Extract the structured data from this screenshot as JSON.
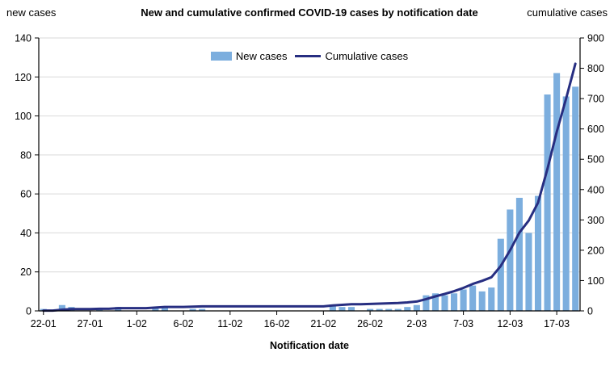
{
  "title": "New and cumulative confirmed COVID-19 cases by notification date",
  "left_axis_label": "new cases",
  "right_axis_label": "cumulative cases",
  "x_axis_title": "Notification date",
  "colors": {
    "bar": "#7CAEDE",
    "line": "#272E81",
    "grid": "#d9d9d9",
    "axis": "#000000"
  },
  "legend": {
    "items": [
      {
        "label": "New cases",
        "type": "bar",
        "color": "#7CAEDE"
      },
      {
        "label": "Cumulative cases",
        "type": "line",
        "color": "#272E81"
      }
    ]
  },
  "chart_data": {
    "type": "bar",
    "title": "New and cumulative confirmed COVID-19 cases by notification date",
    "xlabel": "Notification date",
    "ylabel_left": "new cases",
    "ylabel_right": "cumulative cases",
    "grid": true,
    "legend_position": "top-center",
    "x_tick_every": 5,
    "x_tick_labels": [
      "22-01",
      "27-01",
      "1-02",
      "6-02",
      "11-02",
      "16-02",
      "21-02",
      "26-02",
      "2-03",
      "7-03",
      "12-03",
      "17-03"
    ],
    "left_axis": {
      "min": 0,
      "max": 140,
      "ticks": [
        0,
        20,
        40,
        60,
        80,
        100,
        120,
        140
      ]
    },
    "right_axis": {
      "min": 0,
      "max": 900,
      "ticks": [
        0,
        100,
        200,
        300,
        400,
        500,
        600,
        700,
        800,
        900
      ]
    },
    "x": [
      "22-01",
      "23-01",
      "24-01",
      "25-01",
      "26-01",
      "27-01",
      "28-01",
      "29-01",
      "30-01",
      "31-01",
      "1-02",
      "2-02",
      "3-02",
      "4-02",
      "5-02",
      "6-02",
      "7-02",
      "8-02",
      "9-02",
      "10-02",
      "11-02",
      "12-02",
      "13-02",
      "14-02",
      "15-02",
      "16-02",
      "17-02",
      "18-02",
      "19-02",
      "20-02",
      "21-02",
      "22-02",
      "23-02",
      "24-02",
      "25-02",
      "26-02",
      "27-02",
      "28-02",
      "29-02",
      "1-03",
      "2-03",
      "3-03",
      "4-03",
      "5-03",
      "6-03",
      "7-03",
      "8-03",
      "9-03",
      "10-03",
      "11-03",
      "12-03",
      "13-03",
      "14-03",
      "15-03",
      "16-03",
      "17-03",
      "18-03",
      "19-03"
    ],
    "series": [
      {
        "name": "New cases",
        "type": "bar",
        "axis": "left",
        "color": "#7CAEDE",
        "values": [
          1,
          0,
          3,
          2,
          0,
          0,
          1,
          0,
          2,
          0,
          0,
          0,
          2,
          2,
          0,
          0,
          1,
          1,
          0,
          0,
          0,
          0,
          0,
          0,
          0,
          0,
          0,
          0,
          0,
          0,
          0,
          3,
          2,
          2,
          0,
          1,
          1,
          1,
          1,
          2,
          3,
          8,
          9,
          8,
          9,
          11,
          13,
          10,
          12,
          37,
          52,
          58,
          40,
          59,
          111,
          122,
          110,
          115
        ]
      },
      {
        "name": "Cumulative cases",
        "type": "line",
        "axis": "right",
        "color": "#272E81",
        "values": [
          1,
          1,
          4,
          6,
          6,
          6,
          7,
          7,
          9,
          9,
          9,
          9,
          11,
          13,
          13,
          13,
          14,
          15,
          15,
          15,
          15,
          15,
          15,
          15,
          15,
          15,
          15,
          15,
          15,
          15,
          15,
          18,
          20,
          22,
          22,
          23,
          24,
          25,
          26,
          28,
          31,
          39,
          48,
          56,
          65,
          76,
          89,
          99,
          111,
          148,
          200,
          258,
          298,
          357,
          468,
          590,
          700,
          815
        ]
      }
    ]
  }
}
